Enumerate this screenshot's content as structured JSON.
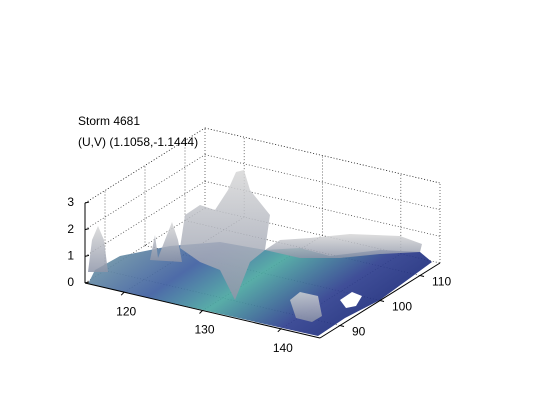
{
  "chart_data": {
    "type": "surface",
    "title": "Storm 4681",
    "subtitle": "(U,V) (1.1058,-1.1444)",
    "xlim": [
      115,
      145
    ],
    "xticks": [
      120,
      130,
      140
    ],
    "ylim": [
      85,
      115
    ],
    "yticks": [
      90,
      100,
      110
    ],
    "zlim": [
      0,
      3
    ],
    "zticks": [
      0,
      1,
      2,
      3
    ],
    "grid": true
  }
}
